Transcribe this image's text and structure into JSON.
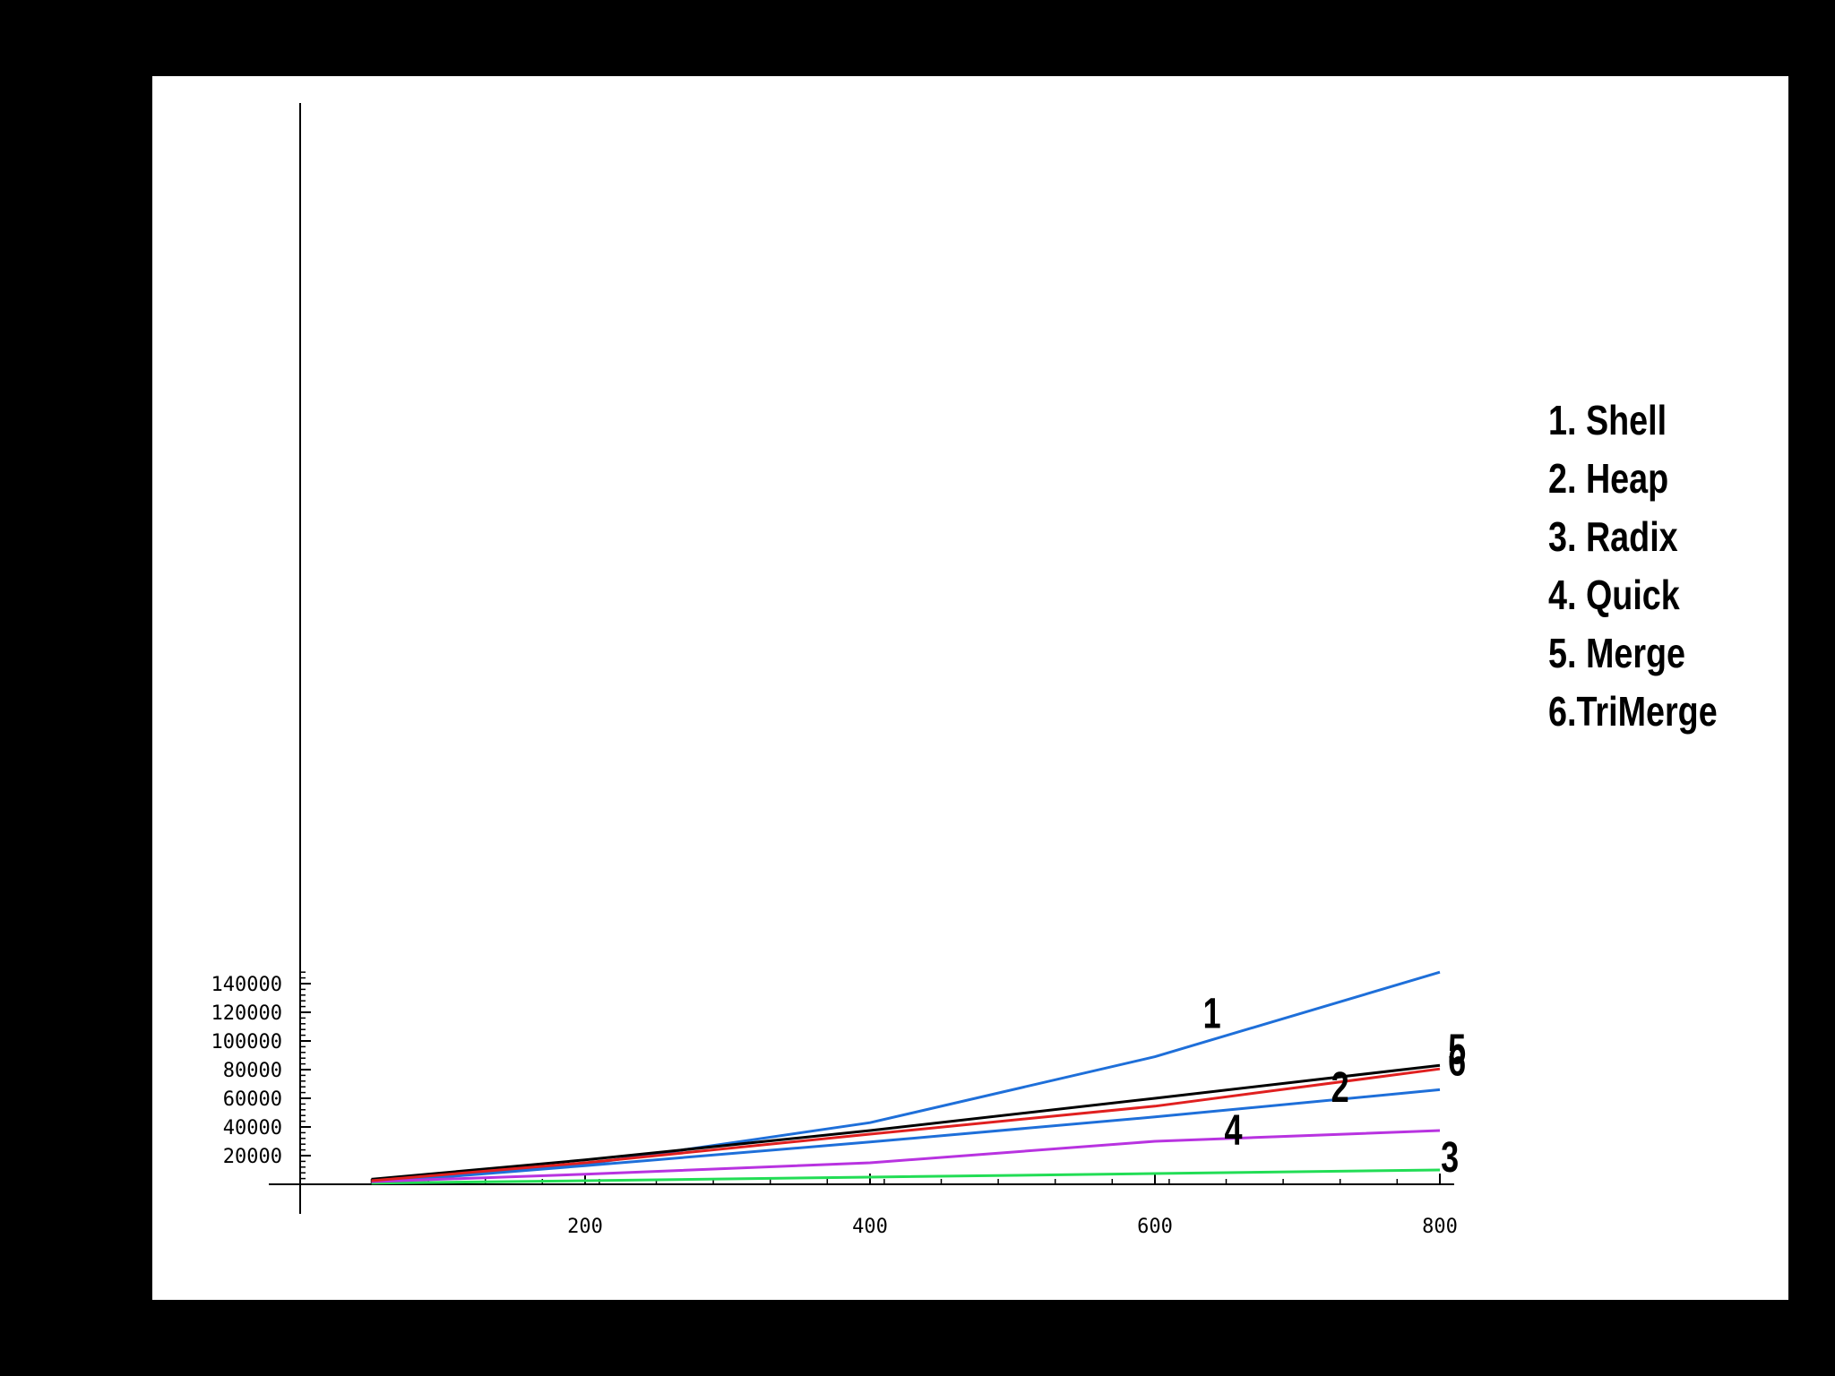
{
  "chart_data": {
    "type": "line",
    "title": "",
    "xlabel": "",
    "ylabel": "",
    "xlim": [
      0,
      800
    ],
    "ylim": [
      0,
      150000
    ],
    "x_ticks": [
      200,
      400,
      600,
      800
    ],
    "y_ticks": [
      20000,
      40000,
      60000,
      80000,
      100000,
      120000,
      140000
    ],
    "grid": false,
    "legend_position": "right",
    "legend": [
      "1. Shell",
      "2. Heap",
      "3. Radix",
      "4. Quick",
      "5. Merge",
      "6.TriMerge"
    ],
    "series": [
      {
        "name": "1",
        "color": "#1e6fd9",
        "x": [
          50,
          200,
          400,
          600,
          800
        ],
        "y": [
          1500,
          14000,
          43000,
          89000,
          148000
        ]
      },
      {
        "name": "2",
        "color": "#1e6fd9",
        "x": [
          50,
          200,
          400,
          600,
          800
        ],
        "y": [
          1000,
          13000,
          29500,
          47000,
          66000
        ]
      },
      {
        "name": "3",
        "color": "#22dd55",
        "x": [
          50,
          200,
          400,
          600,
          800
        ],
        "y": [
          800,
          2500,
          5000,
          7500,
          10000
        ]
      },
      {
        "name": "4",
        "color": "#b833e0",
        "x": [
          50,
          200,
          400,
          600,
          800
        ],
        "y": [
          1800,
          7000,
          15000,
          30000,
          37500
        ]
      },
      {
        "name": "5",
        "color": "#000000",
        "x": [
          50,
          200,
          400,
          600,
          800
        ],
        "y": [
          3500,
          17000,
          37500,
          60000,
          83000
        ]
      },
      {
        "name": "6",
        "color": "#e02020",
        "x": [
          50,
          200,
          400,
          600,
          800
        ],
        "y": [
          2500,
          15000,
          35000,
          54500,
          80500
        ]
      }
    ],
    "series_label_positions": [
      {
        "text": "1",
        "x": 640,
        "y": 109000
      },
      {
        "text": "2",
        "x": 730,
        "y": 57500
      },
      {
        "text": "3",
        "x": 807,
        "y": 8800
      },
      {
        "text": "4",
        "x": 655,
        "y": 27500
      },
      {
        "text": "5",
        "x": 812,
        "y": 84000
      },
      {
        "text": "6",
        "x": 812,
        "y": 76000
      }
    ]
  }
}
